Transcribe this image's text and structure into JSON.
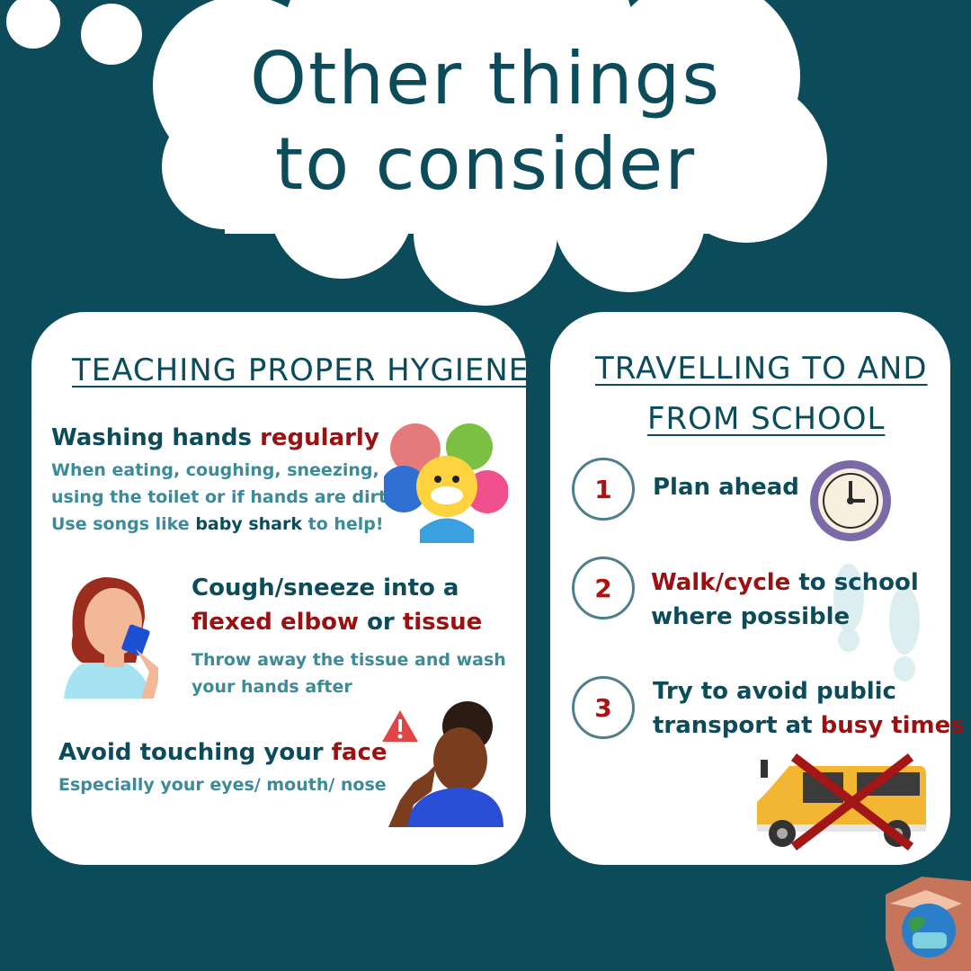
{
  "header": {
    "title_line1": "Other things",
    "title_line2": "to consider"
  },
  "hygiene": {
    "title": "Teaching proper hygiene",
    "wash": {
      "heading_plain": "Washing hands ",
      "heading_emph": "regularly",
      "line1": "When eating, coughing, sneezing,",
      "line2": "using the toilet or if hands are dirty",
      "line3_pre": "Use songs like ",
      "line3_emph": "baby shark",
      "line3_post": " to help!"
    },
    "cough": {
      "heading1": "Cough/sneeze into a",
      "emph1": "flexed elbow",
      "mid": " or ",
      "emph2": "tissue",
      "line1": "Throw away the tissue and wash",
      "line2": "your hands after"
    },
    "face": {
      "heading_plain": "Avoid touching your ",
      "heading_emph": "face",
      "line1": "Especially your eyes/ mouth/ nose"
    }
  },
  "travel": {
    "title_line1": "Travelling to and",
    "title_line2": "from school",
    "steps": [
      {
        "num": "1",
        "emph": "Plan ahead"
      },
      {
        "num": "2",
        "emph": "Walk/cycle",
        "plain": " to school",
        "line2": "where possible"
      },
      {
        "num": "3",
        "line1": "Try to avoid public",
        "pre": "transport at ",
        "emph": "busy times"
      }
    ]
  },
  "colors": {
    "background": "#0b4b5a",
    "accent_red": "#9b1111",
    "teal_text": "#3d8a99"
  }
}
